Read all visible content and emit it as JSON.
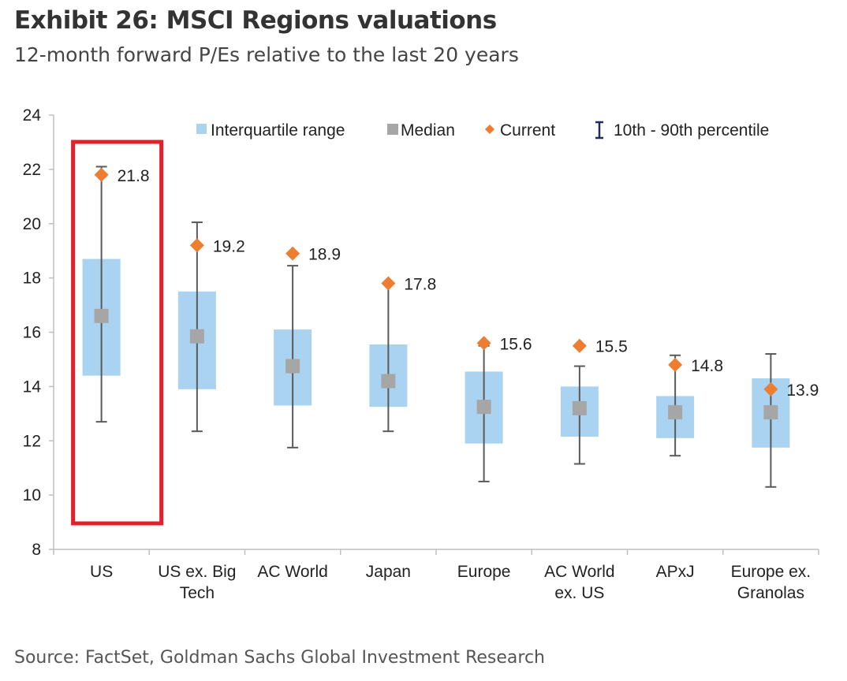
{
  "title": "Exhibit 26: MSCI Regions valuations",
  "subtitle": "12-month forward P/Es relative to the last 20 years",
  "source": "Source: FactSet, Goldman Sachs Global Investment Research",
  "colors": {
    "iqr": "#a9d3f0",
    "median": "#a6a6a6",
    "current": "#ed7d31",
    "whisker": "#5a5a5a",
    "highlight": "#e2202b",
    "axis": "#bfbfbf",
    "legend_whisker": "#1f2d5c"
  },
  "chart_data": {
    "type": "box",
    "ylim": [
      8,
      24
    ],
    "yticks": [
      8,
      10,
      12,
      14,
      16,
      18,
      20,
      22,
      24
    ],
    "legend": {
      "placement": "top",
      "iqr": "Interquartile range",
      "median": "Median",
      "current": "Current",
      "whisker": "10th - 90th percentile"
    },
    "highlight_category": "US",
    "categories": [
      {
        "label": [
          "US"
        ],
        "p10": 12.7,
        "p25": 14.4,
        "median": 16.6,
        "p75": 18.7,
        "p90": 22.1,
        "current": 21.8,
        "current_label": "21.8"
      },
      {
        "label": [
          "US ex. Big",
          "Tech"
        ],
        "p10": 12.35,
        "p25": 13.9,
        "median": 15.85,
        "p75": 17.5,
        "p90": 20.05,
        "current": 19.2,
        "current_label": "19.2"
      },
      {
        "label": [
          "AC World"
        ],
        "p10": 11.75,
        "p25": 13.3,
        "median": 14.75,
        "p75": 16.1,
        "p90": 18.45,
        "current": 18.9,
        "current_label": "18.9"
      },
      {
        "label": [
          "Japan"
        ],
        "p10": 12.35,
        "p25": 13.25,
        "median": 14.2,
        "p75": 15.55,
        "p90": 17.8,
        "current": 17.8,
        "current_label": "17.8"
      },
      {
        "label": [
          "Europe"
        ],
        "p10": 10.5,
        "p25": 11.9,
        "median": 13.25,
        "p75": 14.55,
        "p90": 15.5,
        "current": 15.6,
        "current_label": "15.6"
      },
      {
        "label": [
          "AC World",
          "ex. US"
        ],
        "p10": 11.15,
        "p25": 12.15,
        "median": 13.2,
        "p75": 14.0,
        "p90": 14.75,
        "current": 15.5,
        "current_label": "15.5"
      },
      {
        "label": [
          "APxJ"
        ],
        "p10": 11.45,
        "p25": 12.1,
        "median": 13.05,
        "p75": 13.65,
        "p90": 15.15,
        "current": 14.8,
        "current_label": "14.8"
      },
      {
        "label": [
          "Europe ex.",
          "Granolas"
        ],
        "p10": 10.3,
        "p25": 11.75,
        "median": 13.05,
        "p75": 14.3,
        "p90": 15.2,
        "current": 13.9,
        "current_label": "13.9"
      }
    ]
  }
}
